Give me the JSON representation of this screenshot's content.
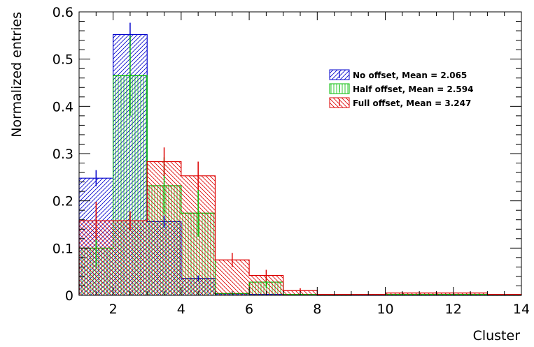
{
  "chart_data": {
    "type": "histogram",
    "xlabel": "Cluster",
    "ylabel": "Normalized entries",
    "xlim": [
      1,
      14
    ],
    "ylim": [
      0,
      0.6
    ],
    "x_ticks": [
      2,
      4,
      6,
      8,
      10,
      12,
      14
    ],
    "y_ticks": [
      0,
      0.1,
      0.2,
      0.3,
      0.4,
      0.5,
      0.6
    ],
    "y_tick_labels": [
      "0",
      "0.1",
      "0.2",
      "0.3",
      "0.4",
      "0.5",
      "0.6"
    ],
    "grid": false,
    "legend_position": "top-right",
    "bin_edges": [
      1,
      2,
      3,
      4,
      5,
      6,
      7,
      8,
      9,
      10,
      11,
      12,
      13,
      14
    ],
    "series": [
      {
        "name": "No offset, Mean = 2.065",
        "color": "#0000cc",
        "hatch": "diagonal-left",
        "values": [
          0.248,
          0.552,
          0.156,
          0.036,
          0.003,
          0.002,
          0.001,
          0,
          0,
          0,
          0,
          0,
          0
        ],
        "errors": [
          0.017,
          0.025,
          0.013,
          0.006,
          0.001,
          0.001,
          0.001,
          0,
          0,
          0,
          0,
          0,
          0
        ]
      },
      {
        "name": "Half offset, Mean = 2.594",
        "color": "#00bb00",
        "hatch": "vertical",
        "values": [
          0.1,
          0.465,
          0.232,
          0.174,
          0.004,
          0.028,
          0.002,
          0,
          0.002,
          0.002,
          0.002,
          0.002,
          0
        ],
        "errors": [
          0.04,
          0.085,
          0.06,
          0.05,
          0.002,
          0.012,
          0.002,
          0,
          0.001,
          0.001,
          0.001,
          0.001,
          0
        ]
      },
      {
        "name": "Full offset, Mean = 3.247",
        "color": "#dd0000",
        "hatch": "diagonal-right",
        "values": [
          0.158,
          0.158,
          0.283,
          0.253,
          0.075,
          0.042,
          0.01,
          0.002,
          0.002,
          0.005,
          0.005,
          0.005,
          0.002
        ],
        "errors": [
          0.04,
          0.02,
          0.03,
          0.03,
          0.015,
          0.012,
          0.005,
          0.001,
          0.001,
          0.002,
          0.002,
          0.002,
          0.001
        ]
      }
    ]
  }
}
